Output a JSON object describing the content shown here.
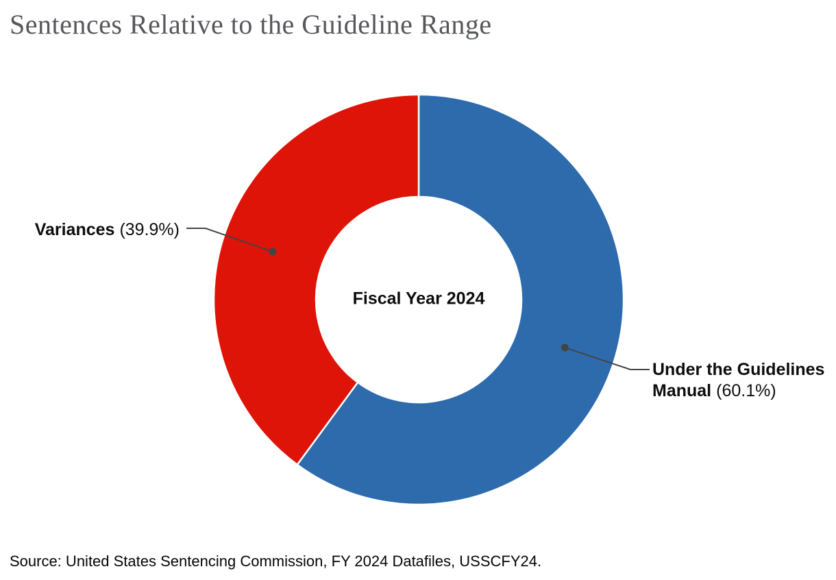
{
  "title": "Sentences Relative to the Guideline Range",
  "center_label": "Fiscal Year 2024",
  "source_note": "Source: United States Sentencing Commission, FY 2024 Datafiles, USSCFY24.",
  "callouts": {
    "left": {
      "name": "Variances",
      "value": "(39.9%)"
    },
    "right": {
      "name_line1": "Under the Guidelines",
      "name_line2": "Manual",
      "value": "(60.1%)"
    }
  },
  "chart_data": {
    "type": "pie",
    "subtype": "donut",
    "title": "Sentences Relative to the Guideline Range",
    "center_label": "Fiscal Year 2024",
    "categories": [
      "Under the Guidelines Manual",
      "Variances"
    ],
    "values": [
      60.1,
      39.9
    ],
    "unit": "percent",
    "series_colors": [
      "#2D6BAD",
      "#DE1408"
    ],
    "start_angle_deg": 0,
    "direction": "clockwise",
    "inner_radius_ratio": 0.5,
    "slice_border_color": "#FFFFFF",
    "annotations": [
      "Under the Guidelines Manual (60.1%)",
      "Variances (39.9%)"
    ],
    "legend_position": "callouts",
    "source": "Source: United States Sentencing Commission, FY 2024 Datafiles, USSCFY24."
  },
  "colors": {
    "blue": "#2D6BAD",
    "red": "#DE1408",
    "title_text": "#55575B",
    "label_text": "#0D0D0D",
    "leader_line": "#444444",
    "background": "#FFFFFF"
  }
}
